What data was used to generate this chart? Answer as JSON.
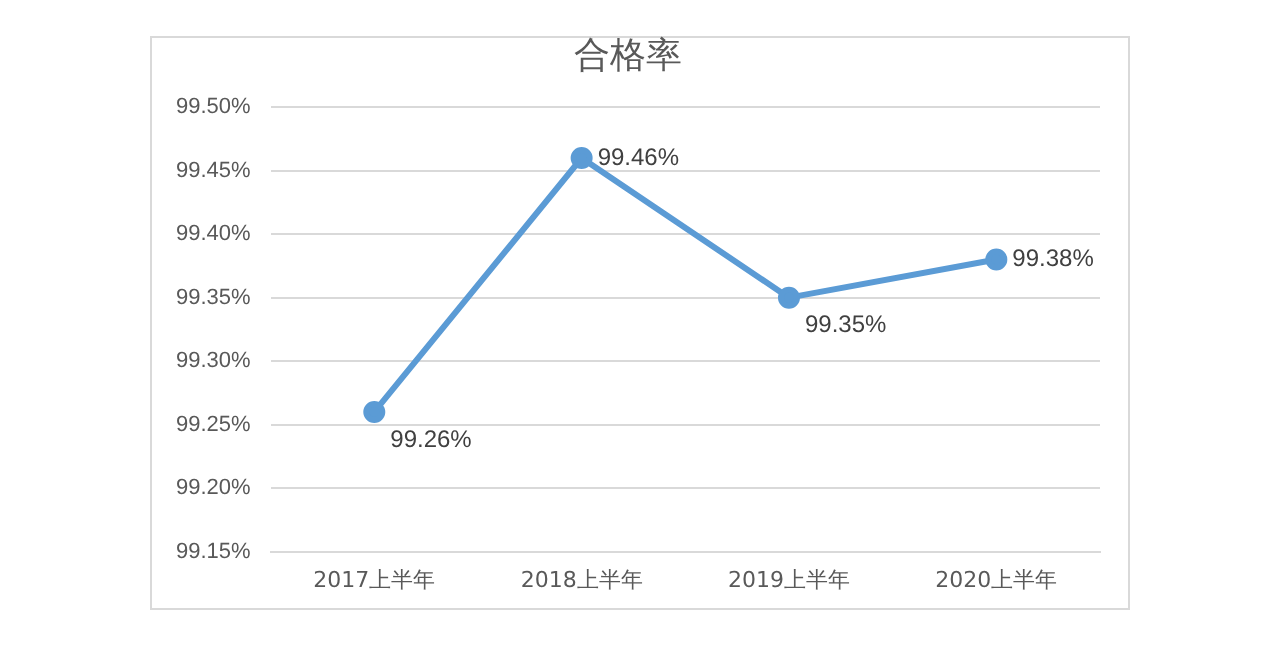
{
  "chart_data": {
    "type": "line",
    "title": "合格率",
    "categories": [
      "2017上半年",
      "2018上半年",
      "2019上半年",
      "2020上半年"
    ],
    "series": [
      {
        "color": "#5b9bd5",
        "values": [
          99.26,
          99.46,
          99.35,
          99.38
        ],
        "value_labels": [
          "99.26%",
          "99.46%",
          "99.35%",
          "99.38%"
        ]
      }
    ],
    "ylim": [
      99.15,
      99.5
    ],
    "yticks": [
      {
        "value": 99.15,
        "label": "99.15%"
      },
      {
        "value": 99.2,
        "label": "99.20%"
      },
      {
        "value": 99.25,
        "label": "99.25%"
      },
      {
        "value": 99.3,
        "label": "99.30%"
      },
      {
        "value": 99.35,
        "label": "99.35%"
      },
      {
        "value": 99.4,
        "label": "99.40%"
      },
      {
        "value": 99.45,
        "label": "99.45%"
      },
      {
        "value": 99.5,
        "label": "99.50%"
      }
    ],
    "grid": "y",
    "legend": false,
    "marker": "circle",
    "line_style": "solid"
  }
}
